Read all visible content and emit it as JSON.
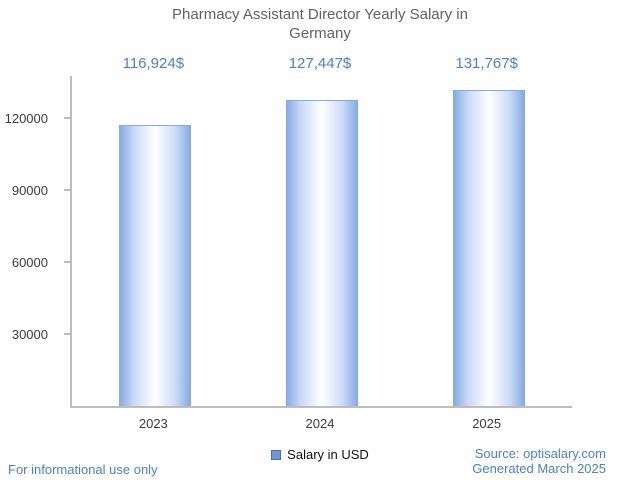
{
  "title": "Pharmacy Assistant Director Yearly Salary in Germany",
  "legend": {
    "label": "Salary in USD"
  },
  "footer": {
    "left": "For informational use only",
    "source": "Source: optisalary.com",
    "generated": "Generated March 2025"
  },
  "chart_data": {
    "type": "bar",
    "title": "Pharmacy Assistant Director Yearly Salary in Germany",
    "categories": [
      "2023",
      "2024",
      "2025"
    ],
    "values": [
      116924,
      127447,
      131767
    ],
    "value_labels": [
      "116,924$",
      "127,447$",
      "131,767$"
    ],
    "series": [
      {
        "name": "Salary in USD",
        "values": [
          116924,
          127447,
          131767
        ]
      }
    ],
    "xlabel": "",
    "ylabel": "",
    "ylim": [
      0,
      137500
    ],
    "yticks": [
      30000,
      60000,
      90000,
      120000
    ],
    "grid": false,
    "legend_position": "bottom-center",
    "colors": {
      "bar_edge": "#86abe4",
      "bar_center": "#ffffff",
      "accent_text": "#4a7fd1",
      "axis": "#bdbdbd",
      "title_text": "#616161",
      "tick_text": "#3b3b3b"
    }
  }
}
